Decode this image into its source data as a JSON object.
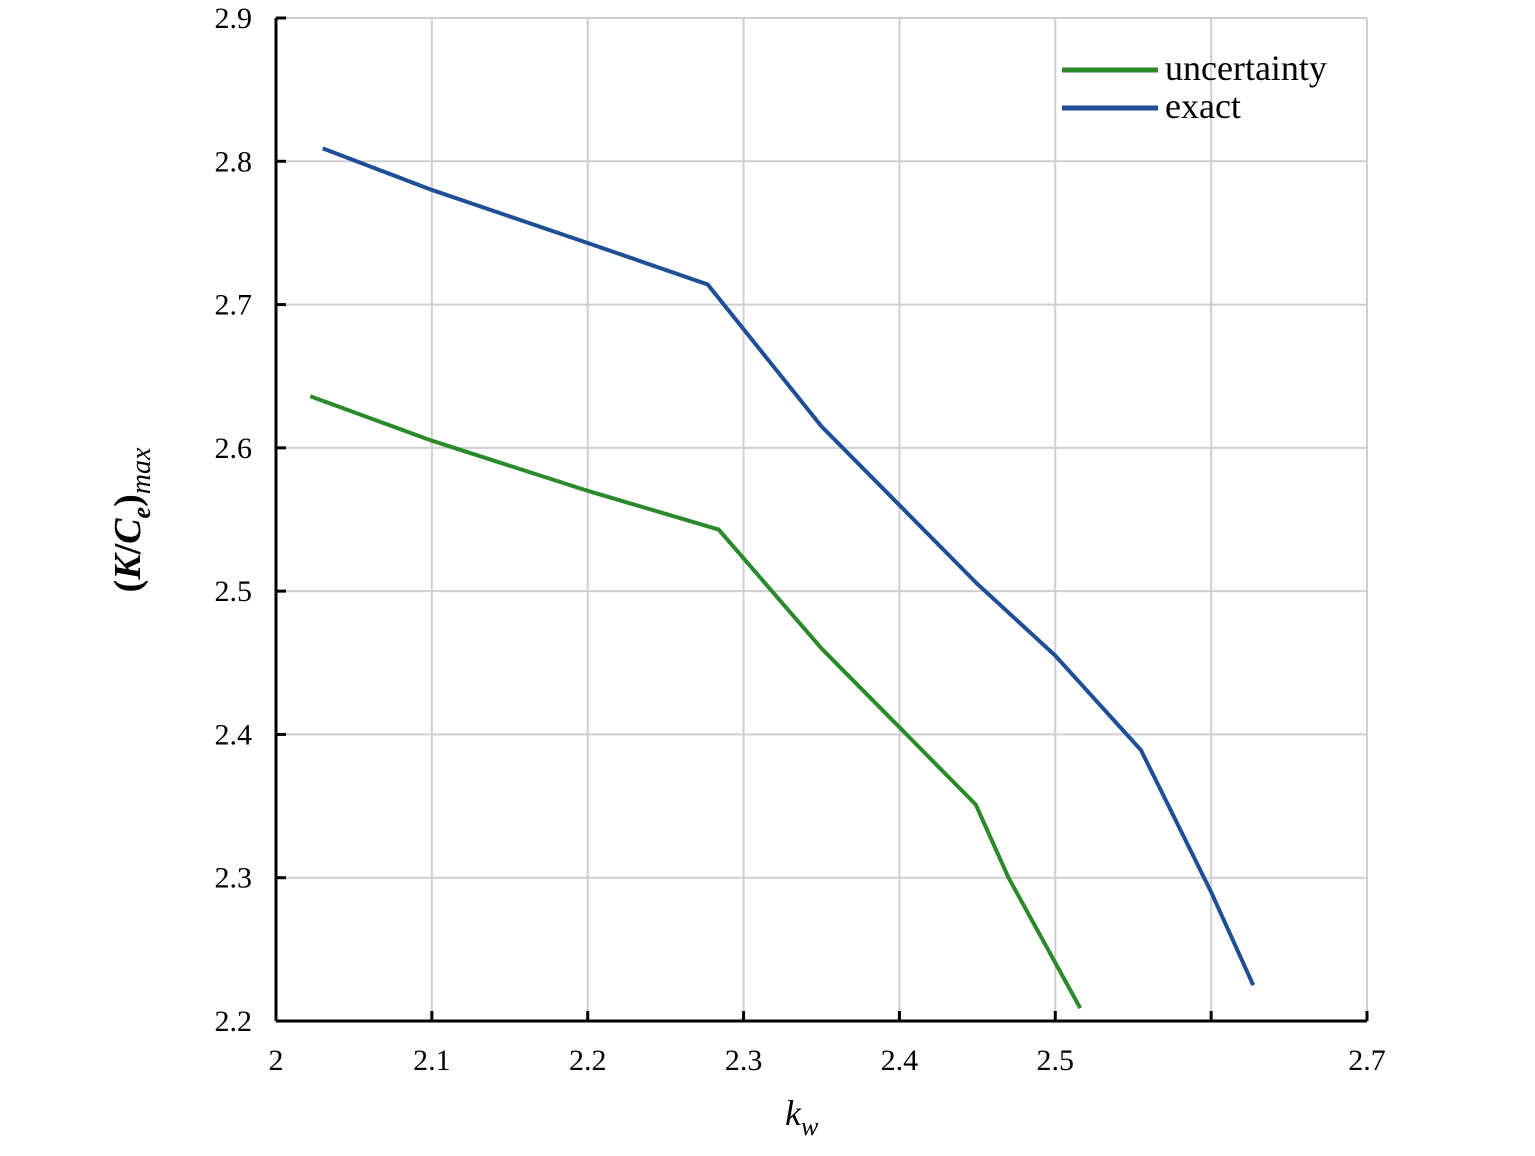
{
  "chart_data": {
    "type": "line",
    "xlabel": "k_w",
    "ylabel": "(K/C_e)_max",
    "xlim": [
      2.0,
      2.7
    ],
    "ylim": [
      2.2,
      2.9
    ],
    "x_ticks": [
      "2",
      "2.1",
      "2.2",
      "2.3",
      "2.4",
      "2.5",
      "",
      "2.7"
    ],
    "y_ticks": [
      "2.2",
      "2.3",
      "2.4",
      "2.5",
      "2.6",
      "2.7",
      "2.8",
      "2.9"
    ],
    "grid": true,
    "legend_position": "top-right",
    "series": [
      {
        "name": "uncertainty",
        "color": "#2a8a2a",
        "x": [
          2.022,
          2.1,
          2.2,
          2.284,
          2.35,
          2.4,
          2.449,
          2.47,
          2.516
        ],
        "y": [
          2.636,
          2.605,
          2.57,
          2.543,
          2.46,
          2.405,
          2.351,
          2.3,
          2.209
        ]
      },
      {
        "name": "exact",
        "color": "#1e4f96",
        "x": [
          2.03,
          2.1,
          2.2,
          2.277,
          2.35,
          2.4,
          2.45,
          2.5,
          2.555,
          2.6,
          2.627
        ],
        "y": [
          2.809,
          2.78,
          2.743,
          2.714,
          2.615,
          2.56,
          2.505,
          2.455,
          2.389,
          2.29,
          2.225
        ]
      }
    ]
  }
}
